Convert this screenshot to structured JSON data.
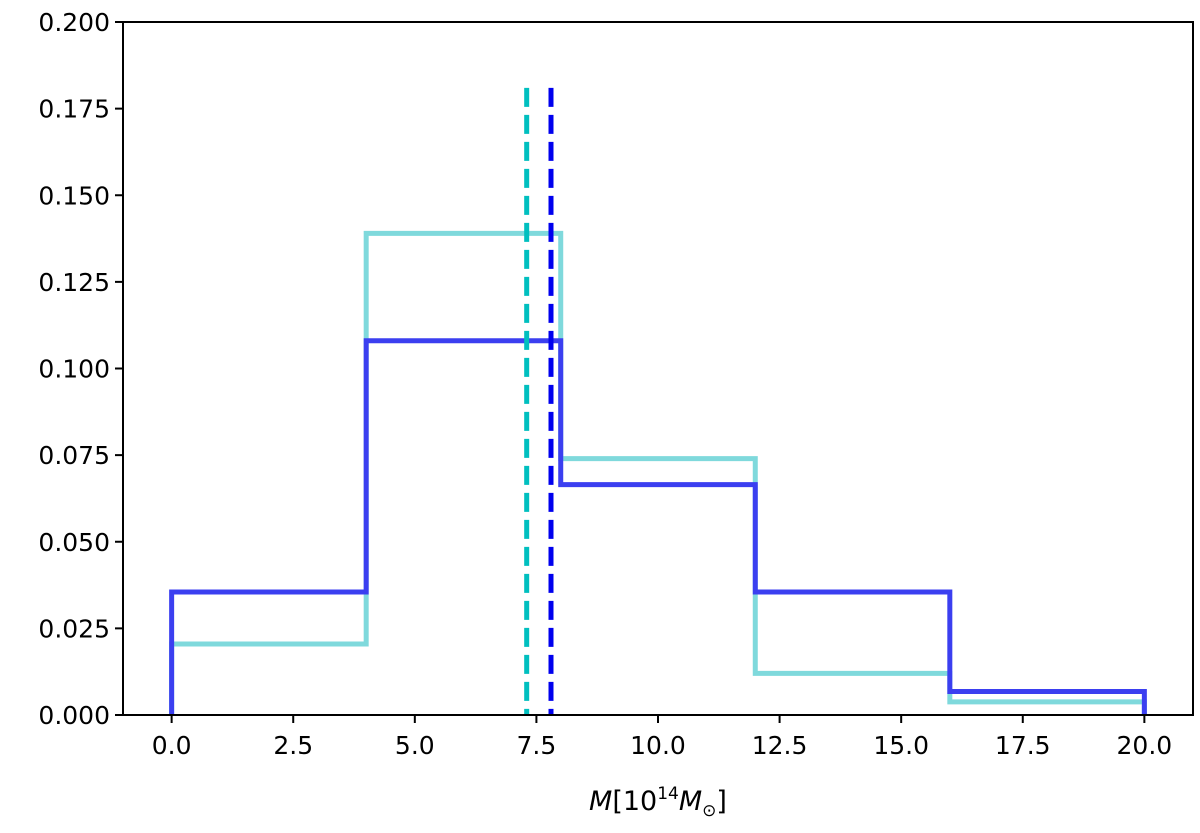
{
  "chart_data": {
    "type": "histogram",
    "title": "",
    "xlabel": "M[10^14 M_⊙]",
    "ylabel": "",
    "xlim": [
      -1.0,
      21.0
    ],
    "ylim": [
      0.0,
      0.2
    ],
    "grid": false,
    "legend": false,
    "x_ticks": [
      "0.0",
      "2.5",
      "5.0",
      "7.5",
      "10.0",
      "12.5",
      "15.0",
      "17.5",
      "20.0"
    ],
    "y_ticks": [
      "0.000",
      "0.025",
      "0.050",
      "0.075",
      "0.100",
      "0.125",
      "0.150",
      "0.175",
      "0.200"
    ],
    "bin_edges": [
      0,
      4,
      8,
      12,
      16,
      20
    ],
    "series": [
      {
        "color": "#7fd9dc",
        "values": [
          0.0205,
          0.139,
          0.074,
          0.012,
          0.0038
        ]
      },
      {
        "color": "#3b3ff0",
        "values": [
          0.0355,
          0.108,
          0.0665,
          0.0355,
          0.0068
        ]
      }
    ],
    "vertical_lines": [
      {
        "x": 7.3,
        "style": "dashed",
        "color": "#00bfbf"
      },
      {
        "x": 7.8,
        "style": "dashed",
        "color": "#0000ee"
      }
    ]
  }
}
